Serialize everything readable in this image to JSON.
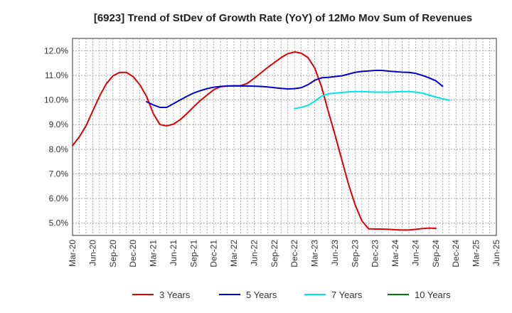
{
  "chart_data": {
    "type": "line",
    "title": "[6923]  Trend of StDev of Growth Rate (YoY) of 12Mo Mov Sum of Revenues",
    "xlabel": "",
    "ylabel": "",
    "ylim": [
      4.5,
      12.5
    ],
    "ytick_values": [
      5.0,
      6.0,
      7.0,
      8.0,
      9.0,
      10.0,
      11.0,
      12.0
    ],
    "ytick_labels": [
      "5.0%",
      "6.0%",
      "7.0%",
      "8.0%",
      "9.0%",
      "10.0%",
      "11.0%",
      "12.0%"
    ],
    "x_start": "Mar-20",
    "x_end": "Jun-25",
    "xtick_labels": [
      "Mar-20",
      "Jun-20",
      "Sep-20",
      "Dec-20",
      "Mar-21",
      "Jun-21",
      "Sep-21",
      "Dec-21",
      "Mar-22",
      "Jun-22",
      "Sep-22",
      "Dec-22",
      "Mar-23",
      "Jun-23",
      "Sep-23",
      "Dec-23",
      "Mar-24",
      "Jun-24",
      "Sep-24",
      "Dec-24",
      "Mar-25",
      "Jun-25"
    ],
    "grid": true,
    "legend_position": "bottom",
    "series": [
      {
        "name": "3 Years",
        "color": "#dd0000",
        "x": [
          0,
          1,
          2,
          3,
          4,
          5,
          6,
          7,
          8,
          9,
          10,
          11,
          12,
          13,
          14,
          15,
          16,
          17,
          18,
          19,
          20,
          21,
          22,
          23,
          24,
          25,
          26,
          27,
          28,
          29,
          30,
          31,
          32,
          33,
          34,
          35,
          36,
          37,
          38,
          39,
          40,
          41,
          42,
          43,
          44,
          45,
          46,
          47,
          48,
          49,
          50,
          51,
          52,
          53,
          54,
          55,
          56,
          57,
          58,
          59,
          60
        ],
        "values": [
          8.15,
          8.5,
          8.95,
          9.55,
          10.15,
          10.65,
          10.98,
          11.12,
          11.12,
          10.95,
          10.62,
          10.15,
          9.45,
          9.0,
          8.95,
          9.02,
          9.2,
          9.45,
          9.72,
          9.98,
          10.2,
          10.42,
          10.54,
          10.57,
          10.58,
          10.58,
          10.68,
          10.88,
          11.1,
          11.32,
          11.52,
          11.72,
          11.88,
          11.95,
          11.9,
          11.72,
          11.3,
          10.55,
          9.55,
          8.6,
          7.6,
          6.6,
          5.75,
          5.1,
          4.77,
          4.76,
          4.76,
          4.75,
          4.73,
          4.72,
          4.72,
          4.75,
          4.78,
          4.8,
          4.79,
          null,
          null,
          null,
          null,
          null,
          null
        ]
      },
      {
        "name": "5 Years",
        "color": "#0000cc",
        "x": [
          0,
          1,
          2,
          3,
          4,
          5,
          6,
          7,
          8,
          9,
          10,
          11,
          12,
          13,
          14,
          15,
          16,
          17,
          18,
          19,
          20,
          21,
          22,
          23,
          24,
          25,
          26,
          27,
          28,
          29,
          30,
          31,
          32,
          33,
          34,
          35,
          36,
          37,
          38,
          39,
          40,
          41,
          42,
          43,
          44,
          45,
          46,
          47,
          48,
          49,
          50,
          51,
          52,
          53,
          54,
          55,
          56,
          57,
          58,
          59,
          60
        ],
        "values": [
          null,
          null,
          null,
          null,
          null,
          null,
          null,
          null,
          null,
          null,
          null,
          9.93,
          9.8,
          9.7,
          9.7,
          9.85,
          10.0,
          10.15,
          10.28,
          10.38,
          10.46,
          10.52,
          10.55,
          10.57,
          10.57,
          10.57,
          10.57,
          10.56,
          10.55,
          10.53,
          10.5,
          10.47,
          10.45,
          10.46,
          10.5,
          10.62,
          10.8,
          10.9,
          10.92,
          10.95,
          10.98,
          11.05,
          11.12,
          11.16,
          11.18,
          11.2,
          11.2,
          11.17,
          11.15,
          11.13,
          11.12,
          11.08,
          11.0,
          10.9,
          10.78,
          10.56,
          null,
          null,
          null,
          null,
          null
        ]
      },
      {
        "name": "7 Years",
        "color": "#00e5e5",
        "x": [
          0,
          1,
          2,
          3,
          4,
          5,
          6,
          7,
          8,
          9,
          10,
          11,
          12,
          13,
          14,
          15,
          16,
          17,
          18,
          19,
          20,
          21,
          22,
          23,
          24,
          25,
          26,
          27,
          28,
          29,
          30,
          31,
          32,
          33,
          34,
          35,
          36,
          37,
          38,
          39,
          40,
          41,
          42,
          43,
          44,
          45,
          46,
          47,
          48,
          49,
          50,
          51,
          52,
          53,
          54,
          55,
          56,
          57,
          58,
          59,
          60
        ],
        "values": [
          null,
          null,
          null,
          null,
          null,
          null,
          null,
          null,
          null,
          null,
          null,
          null,
          null,
          null,
          null,
          null,
          null,
          null,
          null,
          null,
          null,
          null,
          null,
          null,
          null,
          null,
          null,
          null,
          null,
          null,
          null,
          null,
          null,
          9.65,
          9.7,
          9.78,
          9.95,
          10.15,
          10.25,
          10.28,
          10.3,
          10.33,
          10.34,
          10.34,
          10.33,
          10.32,
          10.32,
          10.32,
          10.33,
          10.34,
          10.34,
          10.32,
          10.28,
          10.2,
          10.12,
          10.05,
          9.99,
          null,
          null,
          null,
          null
        ]
      },
      {
        "name": "10 Years",
        "color": "#008000",
        "x": [
          0,
          1,
          2,
          3,
          4,
          5,
          6,
          7,
          8,
          9,
          10,
          11,
          12,
          13,
          14,
          15,
          16,
          17,
          18,
          19,
          20,
          21,
          22,
          23,
          24,
          25,
          26,
          27,
          28,
          29,
          30,
          31,
          32,
          33,
          34,
          35,
          36,
          37,
          38,
          39,
          40,
          41,
          42,
          43,
          44,
          45,
          46,
          47,
          48,
          49,
          50,
          51,
          52,
          53,
          54,
          55,
          56,
          57,
          58,
          59,
          60
        ],
        "values": [
          null,
          null,
          null,
          null,
          null,
          null,
          null,
          null,
          null,
          null,
          null,
          null,
          null,
          null,
          null,
          null,
          null,
          null,
          null,
          null,
          null,
          null,
          null,
          null,
          null,
          null,
          null,
          null,
          null,
          null,
          null,
          null,
          null,
          null,
          null,
          null,
          null,
          null,
          null,
          null,
          null,
          null,
          null,
          null,
          null,
          null,
          null,
          null,
          null,
          null,
          null,
          null,
          null,
          null,
          null,
          null,
          null,
          null,
          null,
          null,
          null
        ]
      }
    ]
  }
}
